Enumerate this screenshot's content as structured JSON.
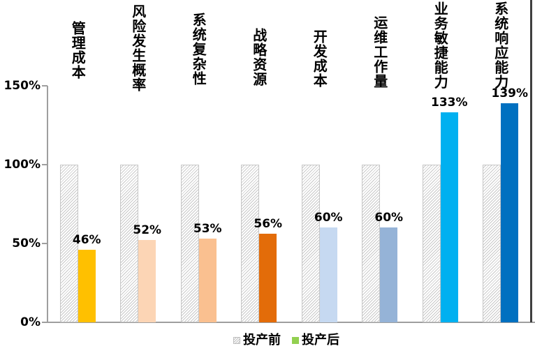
{
  "chart_data": {
    "type": "bar",
    "title": "",
    "categories": [
      "管理成本",
      "风险发生概率",
      "系统复杂性",
      "战略资源",
      "开发成本",
      "运维工作量",
      "业务敏捷能力",
      "系统响应能力"
    ],
    "series": [
      {
        "name": "投产前",
        "values": [
          100,
          100,
          100,
          100,
          100,
          100,
          100,
          100
        ],
        "fill": "hatched-gray"
      },
      {
        "name": "投产后",
        "values": [
          46,
          52,
          53,
          56,
          60,
          60,
          133,
          139
        ],
        "point_colors": [
          "#FFC000",
          "#FCD5B5",
          "#FAC090",
          "#E36C09",
          "#C6D9F1",
          "#95B3D7",
          "#00B0F0",
          "#0070C0"
        ]
      }
    ],
    "data_labels": [
      "46%",
      "52%",
      "53%",
      "56%",
      "60%",
      "60%",
      "133%",
      "139%"
    ],
    "y_ticks": [
      {
        "label": "0%",
        "value": 0
      },
      {
        "label": "50%",
        "value": 50
      },
      {
        "label": "100%",
        "value": 100
      },
      {
        "label": "150%",
        "value": 150
      }
    ],
    "ylim": [
      0,
      150
    ],
    "grid": false,
    "legend_position": "bottom"
  },
  "legend": {
    "before_label": "投产前",
    "after_label": "投产后",
    "after_swatch_color": "#92D050"
  },
  "colors": {
    "hatch_stripe": "#C9C9C9",
    "axis_line": "#9E9E9E",
    "right_border": "#3F3F3F",
    "label_text": "#000000"
  }
}
